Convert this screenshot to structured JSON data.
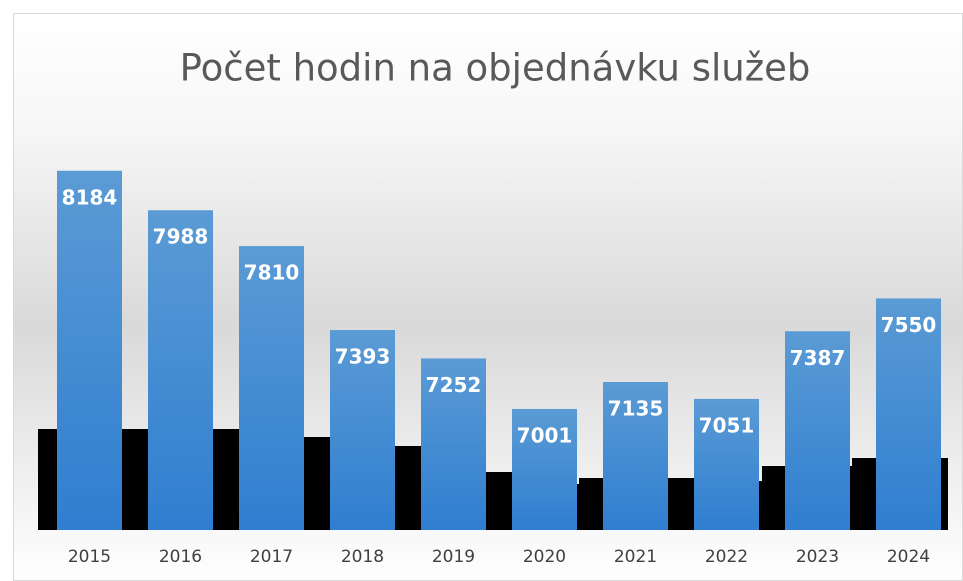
{
  "chart_data": {
    "type": "bar",
    "title": "Počet hodin na objednávku služeb",
    "categories": [
      "2015",
      "2016",
      "2017",
      "2018",
      "2019",
      "2020",
      "2021",
      "2022",
      "2023",
      "2024"
    ],
    "values": [
      8184,
      7988,
      7810,
      7393,
      7252,
      7001,
      7135,
      7051,
      7387,
      7550
    ],
    "color": "#5b9bd5",
    "ylim": [
      6400,
      8600
    ]
  }
}
